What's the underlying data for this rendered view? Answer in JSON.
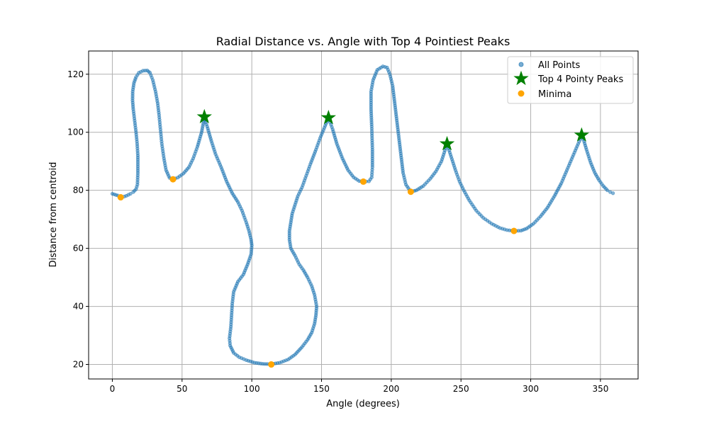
{
  "chart_data": {
    "type": "scatter",
    "title": "Radial Distance vs. Angle with Top 4 Pointiest Peaks",
    "xlabel": "Angle (degrees)",
    "ylabel": "Distance from centroid",
    "xlim": [
      -17,
      377
    ],
    "ylim": [
      15,
      128
    ],
    "xticks": [
      0,
      50,
      100,
      150,
      200,
      250,
      300,
      350
    ],
    "yticks": [
      20,
      40,
      60,
      80,
      100,
      120
    ],
    "xtick_labels": [
      "0",
      "50",
      "100",
      "150",
      "200",
      "250",
      "300",
      "350"
    ],
    "ytick_labels": [
      "20",
      "40",
      "60",
      "80",
      "100",
      "120"
    ],
    "grid": true,
    "legend_position": "top-right",
    "series": [
      {
        "name": "All Points",
        "marker": "circle-small",
        "color": "#1f77b4",
        "trace": [
          [
            0,
            78.8
          ],
          [
            4,
            78.2
          ],
          [
            7,
            77.6
          ],
          [
            10,
            78.1
          ],
          [
            13,
            78.8
          ],
          [
            15,
            79.4
          ],
          [
            17,
            80.4
          ],
          [
            18,
            82
          ],
          [
            18.3,
            86
          ],
          [
            18.3,
            92
          ],
          [
            17.8,
            96
          ],
          [
            17,
            100
          ],
          [
            16,
            104
          ],
          [
            15,
            108
          ],
          [
            14.5,
            111
          ],
          [
            14.6,
            114
          ],
          [
            15.5,
            117
          ],
          [
            17,
            119
          ],
          [
            19,
            120.5
          ],
          [
            22,
            121.2
          ],
          [
            25,
            121.3
          ],
          [
            27,
            120.5
          ],
          [
            29,
            118
          ],
          [
            31,
            114
          ],
          [
            32.5,
            110
          ],
          [
            33.5,
            106
          ],
          [
            34.5,
            101
          ],
          [
            35.5,
            96
          ],
          [
            37,
            91
          ],
          [
            38.5,
            87
          ],
          [
            41,
            84.3
          ],
          [
            43.5,
            83.8
          ],
          [
            47,
            84.4
          ],
          [
            51,
            85.8
          ],
          [
            55,
            88
          ],
          [
            58,
            91
          ],
          [
            61,
            95
          ],
          [
            64,
            100
          ],
          [
            66,
            105
          ],
          [
            68,
            102
          ],
          [
            71,
            97
          ],
          [
            74,
            92.5
          ],
          [
            78,
            88
          ],
          [
            82,
            83
          ],
          [
            86,
            79
          ],
          [
            90,
            76
          ],
          [
            93,
            73
          ],
          [
            96,
            69
          ],
          [
            98,
            66
          ],
          [
            99.5,
            63
          ],
          [
            100,
            61
          ],
          [
            99.5,
            58
          ],
          [
            97,
            54.5
          ],
          [
            94,
            51
          ],
          [
            90,
            48.5
          ],
          [
            87,
            45
          ],
          [
            86,
            41
          ],
          [
            85.5,
            37
          ],
          [
            85,
            33
          ],
          [
            84,
            29
          ],
          [
            84.5,
            26.5
          ],
          [
            87,
            24
          ],
          [
            91,
            22.5
          ],
          [
            96,
            21.5
          ],
          [
            102,
            20.6
          ],
          [
            108,
            20.2
          ],
          [
            114,
            20.1
          ],
          [
            120,
            20.6
          ],
          [
            126,
            21.7
          ],
          [
            131,
            23.4
          ],
          [
            136,
            26
          ],
          [
            140,
            28.5
          ],
          [
            143,
            31
          ],
          [
            145,
            34
          ],
          [
            146,
            37
          ],
          [
            146.5,
            40
          ],
          [
            145,
            44
          ],
          [
            143,
            47
          ],
          [
            140,
            50
          ],
          [
            137,
            52.5
          ],
          [
            134,
            54.5
          ],
          [
            131,
            57.5
          ],
          [
            128,
            60
          ],
          [
            127,
            63
          ],
          [
            127,
            66
          ],
          [
            128,
            69
          ],
          [
            129,
            72
          ],
          [
            131,
            75
          ],
          [
            133,
            78
          ],
          [
            136,
            81
          ],
          [
            139,
            85
          ],
          [
            142,
            89
          ],
          [
            146,
            94
          ],
          [
            149,
            98
          ],
          [
            152,
            101.5
          ],
          [
            155,
            105
          ],
          [
            158,
            101
          ],
          [
            161,
            96
          ],
          [
            165,
            91
          ],
          [
            169,
            87
          ],
          [
            173,
            84.5
          ],
          [
            177,
            83.2
          ],
          [
            180,
            83
          ],
          [
            184,
            83.1
          ],
          [
            186,
            84.5
          ],
          [
            186.5,
            88
          ],
          [
            186.5,
            94
          ],
          [
            186,
            102
          ],
          [
            185.5,
            108
          ],
          [
            185.5,
            114
          ],
          [
            187,
            118
          ],
          [
            190,
            121.5
          ],
          [
            194,
            122.7
          ],
          [
            197,
            122.3
          ],
          [
            199,
            120
          ],
          [
            201,
            116
          ],
          [
            202.5,
            110
          ],
          [
            204,
            104
          ],
          [
            205.5,
            98
          ],
          [
            207,
            92
          ],
          [
            208.5,
            86
          ],
          [
            210.5,
            82
          ],
          [
            214,
            79.5
          ],
          [
            218,
            80
          ],
          [
            223,
            81.5
          ],
          [
            228,
            84
          ],
          [
            232,
            86.5
          ],
          [
            236,
            90
          ],
          [
            240,
            96
          ],
          [
            243,
            91.5
          ],
          [
            246,
            87
          ],
          [
            249,
            83
          ],
          [
            252,
            80
          ],
          [
            256,
            76.5
          ],
          [
            261,
            73
          ],
          [
            266,
            70.5
          ],
          [
            272,
            68.5
          ],
          [
            278,
            67
          ],
          [
            283,
            66.3
          ],
          [
            288,
            66
          ],
          [
            293,
            66.1
          ],
          [
            297,
            66.8
          ],
          [
            302,
            68.5
          ],
          [
            307,
            71
          ],
          [
            312,
            74
          ],
          [
            317,
            78
          ],
          [
            322,
            82.5
          ],
          [
            326,
            87
          ],
          [
            330,
            91.5
          ],
          [
            334,
            96
          ],
          [
            337,
            99
          ],
          [
            340,
            94
          ],
          [
            343,
            89.5
          ],
          [
            346,
            86
          ],
          [
            349,
            83.5
          ],
          [
            352,
            81.5
          ],
          [
            355,
            80
          ],
          [
            357,
            79.4
          ],
          [
            359,
            79
          ]
        ]
      },
      {
        "name": "Top 4 Pointy Peaks",
        "marker": "star",
        "color": "#008000",
        "points": [
          [
            66,
            105.3
          ],
          [
            155,
            105
          ],
          [
            240,
            96
          ],
          [
            336.5,
            99
          ]
        ]
      },
      {
        "name": "Minima",
        "marker": "circle",
        "color": "#ffa500",
        "points": [
          [
            6,
            77.6
          ],
          [
            43.5,
            83.8
          ],
          [
            114,
            20
          ],
          [
            180,
            83
          ],
          [
            214,
            79.5
          ],
          [
            288,
            66
          ]
        ]
      }
    ],
    "legend": [
      "All Points",
      "Top 4 Pointy Peaks",
      "Minima"
    ]
  }
}
